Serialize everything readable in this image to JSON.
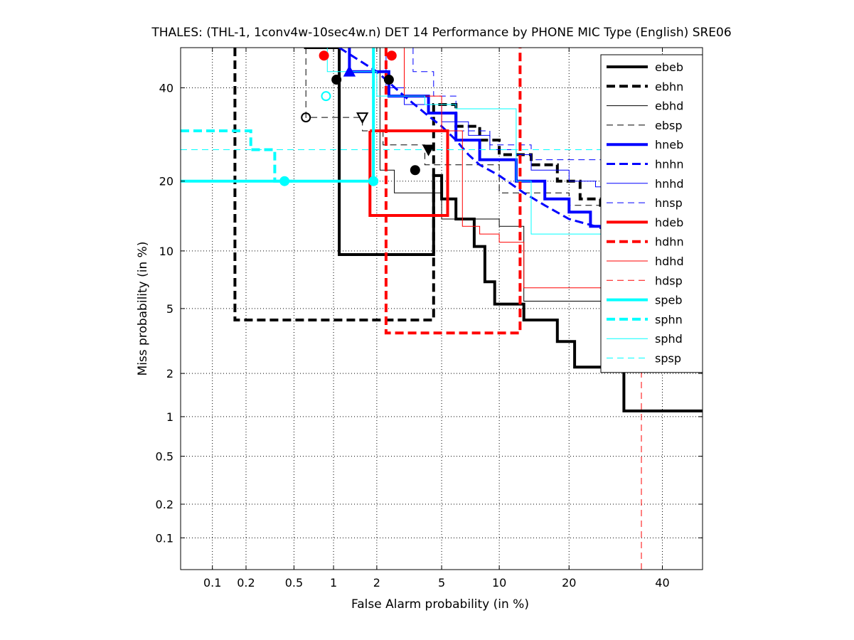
{
  "chart_data": {
    "type": "line",
    "title": "THALES: (THL-1, 1conv4w-10sec4w.n) DET 14 Performance by PHONE MIC Type (English) SRE06",
    "xlabel": "False Alarm probability (in %)",
    "ylabel": "Miss probability (in %)",
    "scale": "normal-deviate (probit) on both axes",
    "xlim": [
      0.05,
      50
    ],
    "ylim": [
      0.05,
      50
    ],
    "x_ticks": [
      "0.1",
      "0.2",
      "0.5",
      "1",
      "2",
      "5",
      "10",
      "20",
      "40"
    ],
    "y_ticks": [
      "0.1",
      "0.2",
      "0.5",
      "1",
      "2",
      "5",
      "10",
      "20",
      "40"
    ],
    "grid": true,
    "legend_position": "top-right",
    "series": [
      {
        "name": "ebeb",
        "color": "#000000",
        "style": "solid",
        "width": 4,
        "points": [
          [
            0.6,
            50
          ],
          [
            1.1,
            50
          ],
          [
            1.1,
            9.6
          ],
          [
            4.5,
            9.6
          ],
          [
            4.5,
            21
          ],
          [
            5,
            21
          ],
          [
            5,
            17
          ],
          [
            6,
            17
          ],
          [
            6,
            14
          ],
          [
            7.5,
            14
          ],
          [
            7.5,
            10.5
          ],
          [
            8.5,
            10.5
          ],
          [
            8.5,
            7
          ],
          [
            9.5,
            7
          ],
          [
            9.5,
            5.3
          ],
          [
            13,
            5.3
          ],
          [
            13,
            4.3
          ],
          [
            18,
            4.3
          ],
          [
            18,
            3.2
          ],
          [
            21,
            3.2
          ],
          [
            21,
            2.2
          ],
          [
            31,
            2.2
          ],
          [
            31,
            1.1
          ],
          [
            50,
            1.1
          ]
        ]
      },
      {
        "name": "ebhn",
        "color": "#000000",
        "style": "dashed",
        "width": 4,
        "points": [
          [
            0.16,
            50
          ],
          [
            0.16,
            4.3
          ],
          [
            4.5,
            4.3
          ],
          [
            4.5,
            36
          ],
          [
            6,
            36
          ],
          [
            6,
            31
          ],
          [
            8,
            31
          ],
          [
            8,
            28
          ],
          [
            10,
            28
          ],
          [
            10,
            25
          ],
          [
            14,
            25
          ],
          [
            14,
            23
          ],
          [
            18,
            23
          ],
          [
            18,
            20
          ],
          [
            22,
            20
          ],
          [
            22,
            17
          ],
          [
            26,
            17
          ],
          [
            26,
            16
          ],
          [
            38,
            16
          ],
          [
            38,
            14
          ],
          [
            50,
            14
          ]
        ]
      },
      {
        "name": "ebhd",
        "color": "#000000",
        "style": "solid",
        "width": 1,
        "points": [
          [
            2.1,
            50
          ],
          [
            2.1,
            22
          ],
          [
            2.6,
            22
          ],
          [
            2.6,
            18
          ],
          [
            5,
            18
          ],
          [
            5,
            14
          ],
          [
            10,
            14
          ],
          [
            10,
            13
          ],
          [
            13,
            13
          ],
          [
            13,
            5.5
          ],
          [
            40,
            5.5
          ],
          [
            40,
            5.3
          ],
          [
            50,
            5.3
          ]
        ]
      },
      {
        "name": "ebsp",
        "color": "#000000",
        "style": "dashed",
        "width": 1,
        "points": [
          [
            0.62,
            50
          ],
          [
            0.62,
            33
          ],
          [
            1.6,
            33
          ],
          [
            1.6,
            30
          ],
          [
            2.2,
            30
          ],
          [
            2.2,
            27
          ],
          [
            4,
            27
          ],
          [
            4,
            23
          ],
          [
            10,
            23
          ],
          [
            10,
            18
          ],
          [
            20,
            18
          ],
          [
            20,
            16
          ],
          [
            50,
            16
          ]
        ]
      },
      {
        "name": "hneb",
        "color": "#0000ff",
        "style": "solid",
        "width": 4,
        "points": [
          [
            1.3,
            50
          ],
          [
            1.3,
            44
          ],
          [
            2.4,
            44
          ],
          [
            2.4,
            38
          ],
          [
            4.2,
            38
          ],
          [
            4.2,
            34
          ],
          [
            6,
            34
          ],
          [
            6,
            28
          ],
          [
            8,
            28
          ],
          [
            8,
            24
          ],
          [
            12,
            24
          ],
          [
            12,
            20
          ],
          [
            16,
            20
          ],
          [
            16,
            17
          ],
          [
            20,
            17
          ],
          [
            20,
            15
          ],
          [
            24,
            15
          ],
          [
            24,
            13
          ],
          [
            40,
            13
          ],
          [
            40,
            9
          ],
          [
            48,
            9
          ],
          [
            48,
            6.5
          ],
          [
            50,
            6.5
          ]
        ]
      },
      {
        "name": "hnhn",
        "color": "#0000ff",
        "style": "dashed",
        "width": 3,
        "points": [
          [
            1.1,
            50
          ],
          [
            2,
            44
          ],
          [
            3,
            38
          ],
          [
            4,
            34
          ],
          [
            5,
            31
          ],
          [
            6,
            28
          ],
          [
            7,
            25
          ],
          [
            8,
            23
          ],
          [
            10,
            21
          ],
          [
            13,
            18
          ],
          [
            16,
            16
          ],
          [
            20,
            14
          ],
          [
            25,
            13
          ],
          [
            30,
            12
          ],
          [
            35,
            10
          ],
          [
            40,
            8.5
          ],
          [
            45,
            6
          ],
          [
            50,
            3.4
          ]
        ]
      },
      {
        "name": "hnhd",
        "color": "#0000ff",
        "style": "solid",
        "width": 1,
        "points": [
          [
            2.3,
            50
          ],
          [
            2.3,
            40
          ],
          [
            3,
            40
          ],
          [
            3,
            36
          ],
          [
            5,
            36
          ],
          [
            5,
            32
          ],
          [
            7,
            32
          ],
          [
            7,
            29
          ],
          [
            9,
            29
          ],
          [
            9,
            26
          ],
          [
            12,
            26
          ],
          [
            12,
            25
          ],
          [
            14,
            25
          ],
          [
            14,
            22
          ],
          [
            20,
            22
          ],
          [
            20,
            20
          ],
          [
            25,
            20
          ],
          [
            25,
            19
          ],
          [
            35,
            19
          ],
          [
            35,
            17
          ],
          [
            50,
            17
          ]
        ]
      },
      {
        "name": "hnsp",
        "color": "#0000ff",
        "style": "dashed",
        "width": 1,
        "points": [
          [
            3.4,
            50
          ],
          [
            3.4,
            44
          ],
          [
            4.5,
            44
          ],
          [
            4.5,
            38
          ],
          [
            6,
            38
          ],
          [
            6,
            30
          ],
          [
            9,
            30
          ],
          [
            9,
            27
          ],
          [
            14,
            27
          ],
          [
            14,
            24
          ],
          [
            50,
            24
          ]
        ]
      },
      {
        "name": "hdeb",
        "color": "#ff0000",
        "style": "solid",
        "width": 4,
        "points": [
          [
            1.8,
            30
          ],
          [
            5.4,
            30
          ],
          [
            5.4,
            14.5
          ],
          [
            1.8,
            14.5
          ],
          [
            1.8,
            30
          ]
        ]
      },
      {
        "name": "hdhn",
        "color": "#ff0000",
        "style": "dashed",
        "width": 4,
        "points": [
          [
            2.3,
            50
          ],
          [
            2.3,
            3.6
          ],
          [
            12.5,
            3.6
          ],
          [
            12.5,
            50
          ]
        ]
      },
      {
        "name": "hdhd",
        "color": "#ff0000",
        "style": "solid",
        "width": 1,
        "points": [
          [
            3,
            50
          ],
          [
            3,
            38
          ],
          [
            5,
            38
          ],
          [
            5,
            30
          ],
          [
            6.5,
            30
          ],
          [
            6.5,
            13
          ],
          [
            8,
            13
          ],
          [
            8,
            12
          ],
          [
            10,
            12
          ],
          [
            10,
            11
          ],
          [
            13,
            11
          ],
          [
            13,
            6.5
          ],
          [
            50,
            6.5
          ]
        ]
      },
      {
        "name": "hdsp",
        "color": "#ff0000",
        "style": "dashed",
        "width": 1,
        "points": [
          [
            35,
            0.05
          ],
          [
            35,
            14
          ],
          [
            50,
            14
          ]
        ]
      },
      {
        "name": "speb",
        "color": "#00ffff",
        "style": "solid",
        "width": 4,
        "points": [
          [
            0.05,
            20
          ],
          [
            1.9,
            20
          ],
          [
            1.9,
            50
          ]
        ]
      },
      {
        "name": "sphn",
        "color": "#00ffff",
        "style": "dashed",
        "width": 4,
        "points": [
          [
            0.05,
            30
          ],
          [
            0.22,
            30
          ],
          [
            0.22,
            26
          ],
          [
            0.35,
            26
          ],
          [
            0.35,
            20
          ],
          [
            0.5,
            20
          ]
        ]
      },
      {
        "name": "sphd",
        "color": "#00ffff",
        "style": "solid",
        "width": 1,
        "points": [
          [
            0.05,
            50
          ],
          [
            0.9,
            50
          ],
          [
            0.9,
            44
          ],
          [
            2,
            44
          ],
          [
            2,
            38
          ],
          [
            4,
            38
          ],
          [
            4,
            36
          ],
          [
            6,
            36
          ],
          [
            6,
            35
          ],
          [
            12,
            35
          ],
          [
            12,
            20
          ],
          [
            14,
            20
          ],
          [
            14,
            12
          ],
          [
            50,
            12
          ]
        ]
      },
      {
        "name": "spsp",
        "color": "#00ffff",
        "style": "dashed",
        "width": 1,
        "points": [
          [
            0.05,
            26
          ],
          [
            50,
            26
          ]
        ]
      }
    ],
    "markers": [
      {
        "series": "hdeb",
        "shape": "circle",
        "filled": true,
        "x": 0.85,
        "y": 48
      },
      {
        "series": "ebeb",
        "shape": "circle",
        "filled": true,
        "x": 1.05,
        "y": 42
      },
      {
        "series": "hneb",
        "shape": "triangle-up",
        "filled": true,
        "x": 1.3,
        "y": 44
      },
      {
        "series": "ebhn",
        "shape": "circle",
        "filled": true,
        "x": 2.4,
        "y": 42
      },
      {
        "series": "ebeb",
        "shape": "circle",
        "filled": true,
        "x": 3.5,
        "y": 22
      },
      {
        "series": "ebhn",
        "shape": "triangle-down",
        "filled": true,
        "x": 4.2,
        "y": 26
      },
      {
        "series": "ebsp",
        "shape": "circle",
        "filled": false,
        "x": 0.62,
        "y": 33
      },
      {
        "series": "ebsp",
        "shape": "triangle-down",
        "filled": false,
        "x": 1.6,
        "y": 33
      },
      {
        "series": "speb",
        "shape": "circle",
        "filled": true,
        "x": 0.42,
        "y": 20
      },
      {
        "series": "speb",
        "shape": "circle",
        "filled": true,
        "x": 1.9,
        "y": 20
      },
      {
        "series": "sphn",
        "shape": "circle",
        "filled": false,
        "x": 0.88,
        "y": 38
      },
      {
        "series": "hdhn",
        "shape": "circle",
        "filled": true,
        "x": 2.5,
        "y": 48
      }
    ]
  }
}
